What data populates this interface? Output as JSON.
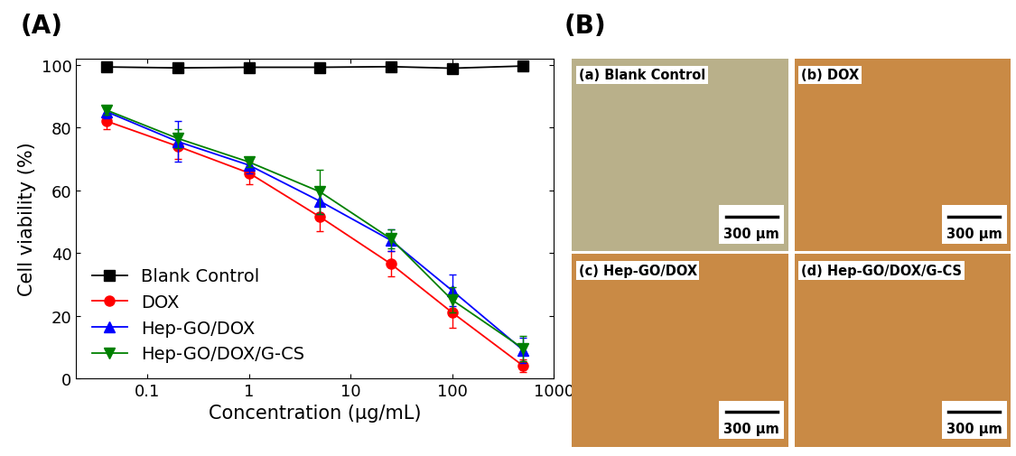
{
  "chart_data": {
    "type": "line",
    "title": "(A)",
    "x_label": "Concentration (μg/mL)",
    "y_label": "Cell viability (%)",
    "x": [
      0.04,
      0.2,
      1,
      5,
      25,
      100,
      500
    ],
    "log": "x",
    "xlim": [
      0.02,
      1000
    ],
    "xticks": [
      0.1,
      1,
      10,
      100,
      1000
    ],
    "ylim": [
      0,
      102
    ],
    "yticks": [
      0,
      20,
      40,
      60,
      80,
      100
    ],
    "legend": "lower left",
    "series": [
      {
        "name": "Blank Control",
        "color": "#000000",
        "marker": "square",
        "values": [
          99.3,
          99.0,
          99.2,
          99.2,
          99.4,
          98.9,
          99.6
        ]
      },
      {
        "name": "DOX",
        "color": "#ff0000",
        "marker": "circle",
        "values": [
          82,
          74,
          65.5,
          51.5,
          36.5,
          21,
          4
        ],
        "errors": [
          2.5,
          4,
          3.5,
          4.5,
          4,
          5,
          2
        ]
      },
      {
        "name": "Hep-GO/DOX",
        "color": "#0000ff",
        "marker": "triangle_up",
        "values": [
          85,
          75.5,
          68,
          56.5,
          44,
          28,
          9
        ],
        "errors": [
          2,
          6.5,
          2.5,
          4,
          3.5,
          5,
          4
        ]
      },
      {
        "name": "Hep-GO/DOX/G-CS",
        "color": "#008000",
        "marker": "triangle_down",
        "values": [
          85.5,
          76.5,
          69,
          59.5,
          44.5,
          25,
          9.5
        ],
        "errors": [
          1.5,
          3,
          1.5,
          7,
          3,
          4,
          4
        ]
      }
    ]
  },
  "panel_b": {
    "title": "(B)",
    "images": [
      {
        "label": "(a) Blank Control",
        "scale_bar": "300 μm"
      },
      {
        "label": "(b) DOX",
        "scale_bar": "300 μm"
      },
      {
        "label": "(c) Hep-GO/DOX",
        "scale_bar": "300 μm"
      },
      {
        "label": "(d) Hep-GO/DOX/G-CS",
        "scale_bar": "300 μm"
      }
    ]
  }
}
